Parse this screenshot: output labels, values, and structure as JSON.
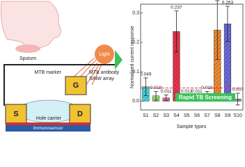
{
  "diagram": {
    "sputum": "Sputum",
    "light": "Light",
    "gate": "G",
    "source": "S",
    "drain": "D",
    "marker": "MTB marker",
    "antibody": "MTB antibody",
    "array": "SiNW array",
    "carrier": "Hole carrier",
    "sensor": "Immunosensor"
  },
  "chart_data": {
    "type": "bar",
    "y_label": "Normalized current response",
    "x_label": "Sample types",
    "annotation": "Rapid TB Screening",
    "categories": [
      "S1",
      "S2",
      "S3",
      "S4",
      "S5",
      "S6",
      "S7",
      "S8",
      "S9",
      "S10"
    ],
    "values": [
      0.049,
      0.018,
      0.011,
      0.237,
      0.012,
      0.011,
      0.018,
      0.242,
      0.263,
      0.007
    ],
    "errors": [
      0.03,
      0.015,
      0.01,
      0.07,
      0.01,
      0.01,
      0.015,
      0.1,
      0.06,
      0.02
    ],
    "colors": [
      "#3fd6d6",
      "#9be07a",
      "#f06aa0",
      "#e8334a",
      "#3fbf5a",
      "#2bb3a0",
      "#f0a030",
      "#f08a30",
      "#6a6ad8",
      "#9a9a9a"
    ],
    "threshold": 0.045,
    "threshold_color": "#e8334a",
    "ylim": [
      -0.03,
      0.33
    ],
    "yticks": [
      {
        "value": 0,
        "label": "0.0"
      },
      0.1,
      0.2,
      0.3
    ]
  }
}
